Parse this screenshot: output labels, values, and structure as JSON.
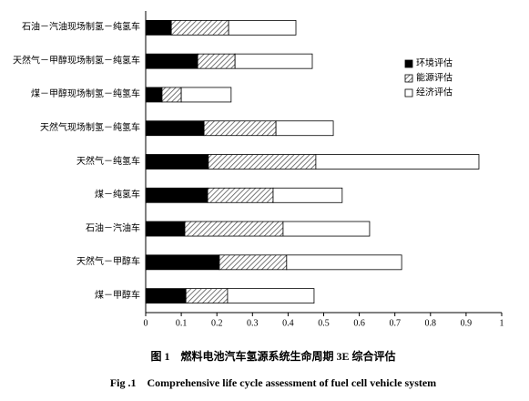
{
  "chart_data": {
    "type": "stacked-barh",
    "categories": [
      "石油－汽油现场制氢－纯氢车",
      "天然气－甲醇现场制氢－纯氢车",
      "煤－甲醇现场制氢－纯氢车",
      "天然气现场制氢－纯氢车",
      "天然气－纯氢车",
      "煤－纯氢车",
      "石油－汽油车",
      "天然气－甲醇车",
      "煤－甲醇车"
    ],
    "series": [
      {
        "name": "环境评估",
        "color": "#000000",
        "values": [
          0.072,
          0.146,
          0.046,
          0.164,
          0.176,
          0.174,
          0.11,
          0.207,
          0.113
        ]
      },
      {
        "name": "能源评估",
        "color": "#c8c8c8",
        "hatch": true,
        "values": [
          0.161,
          0.105,
          0.054,
          0.202,
          0.302,
          0.184,
          0.276,
          0.189,
          0.117
        ]
      },
      {
        "name": "经济评估",
        "color": "#ffffff",
        "values": [
          0.189,
          0.217,
          0.14,
          0.161,
          0.458,
          0.194,
          0.243,
          0.323,
          0.243
        ]
      }
    ],
    "xlim": [
      0,
      1
    ],
    "xticks": [
      0,
      0.1,
      0.2,
      0.3,
      0.4,
      0.5,
      0.6,
      0.7,
      0.8,
      0.9,
      1
    ],
    "legend": "upper-right",
    "caption": "图 1　燃料电池汽车氢源系统生命周期 3E 综合评估",
    "caption_en": "Fig .1　Comprehensive life cycle assessment of fuel cell vehicle system"
  }
}
